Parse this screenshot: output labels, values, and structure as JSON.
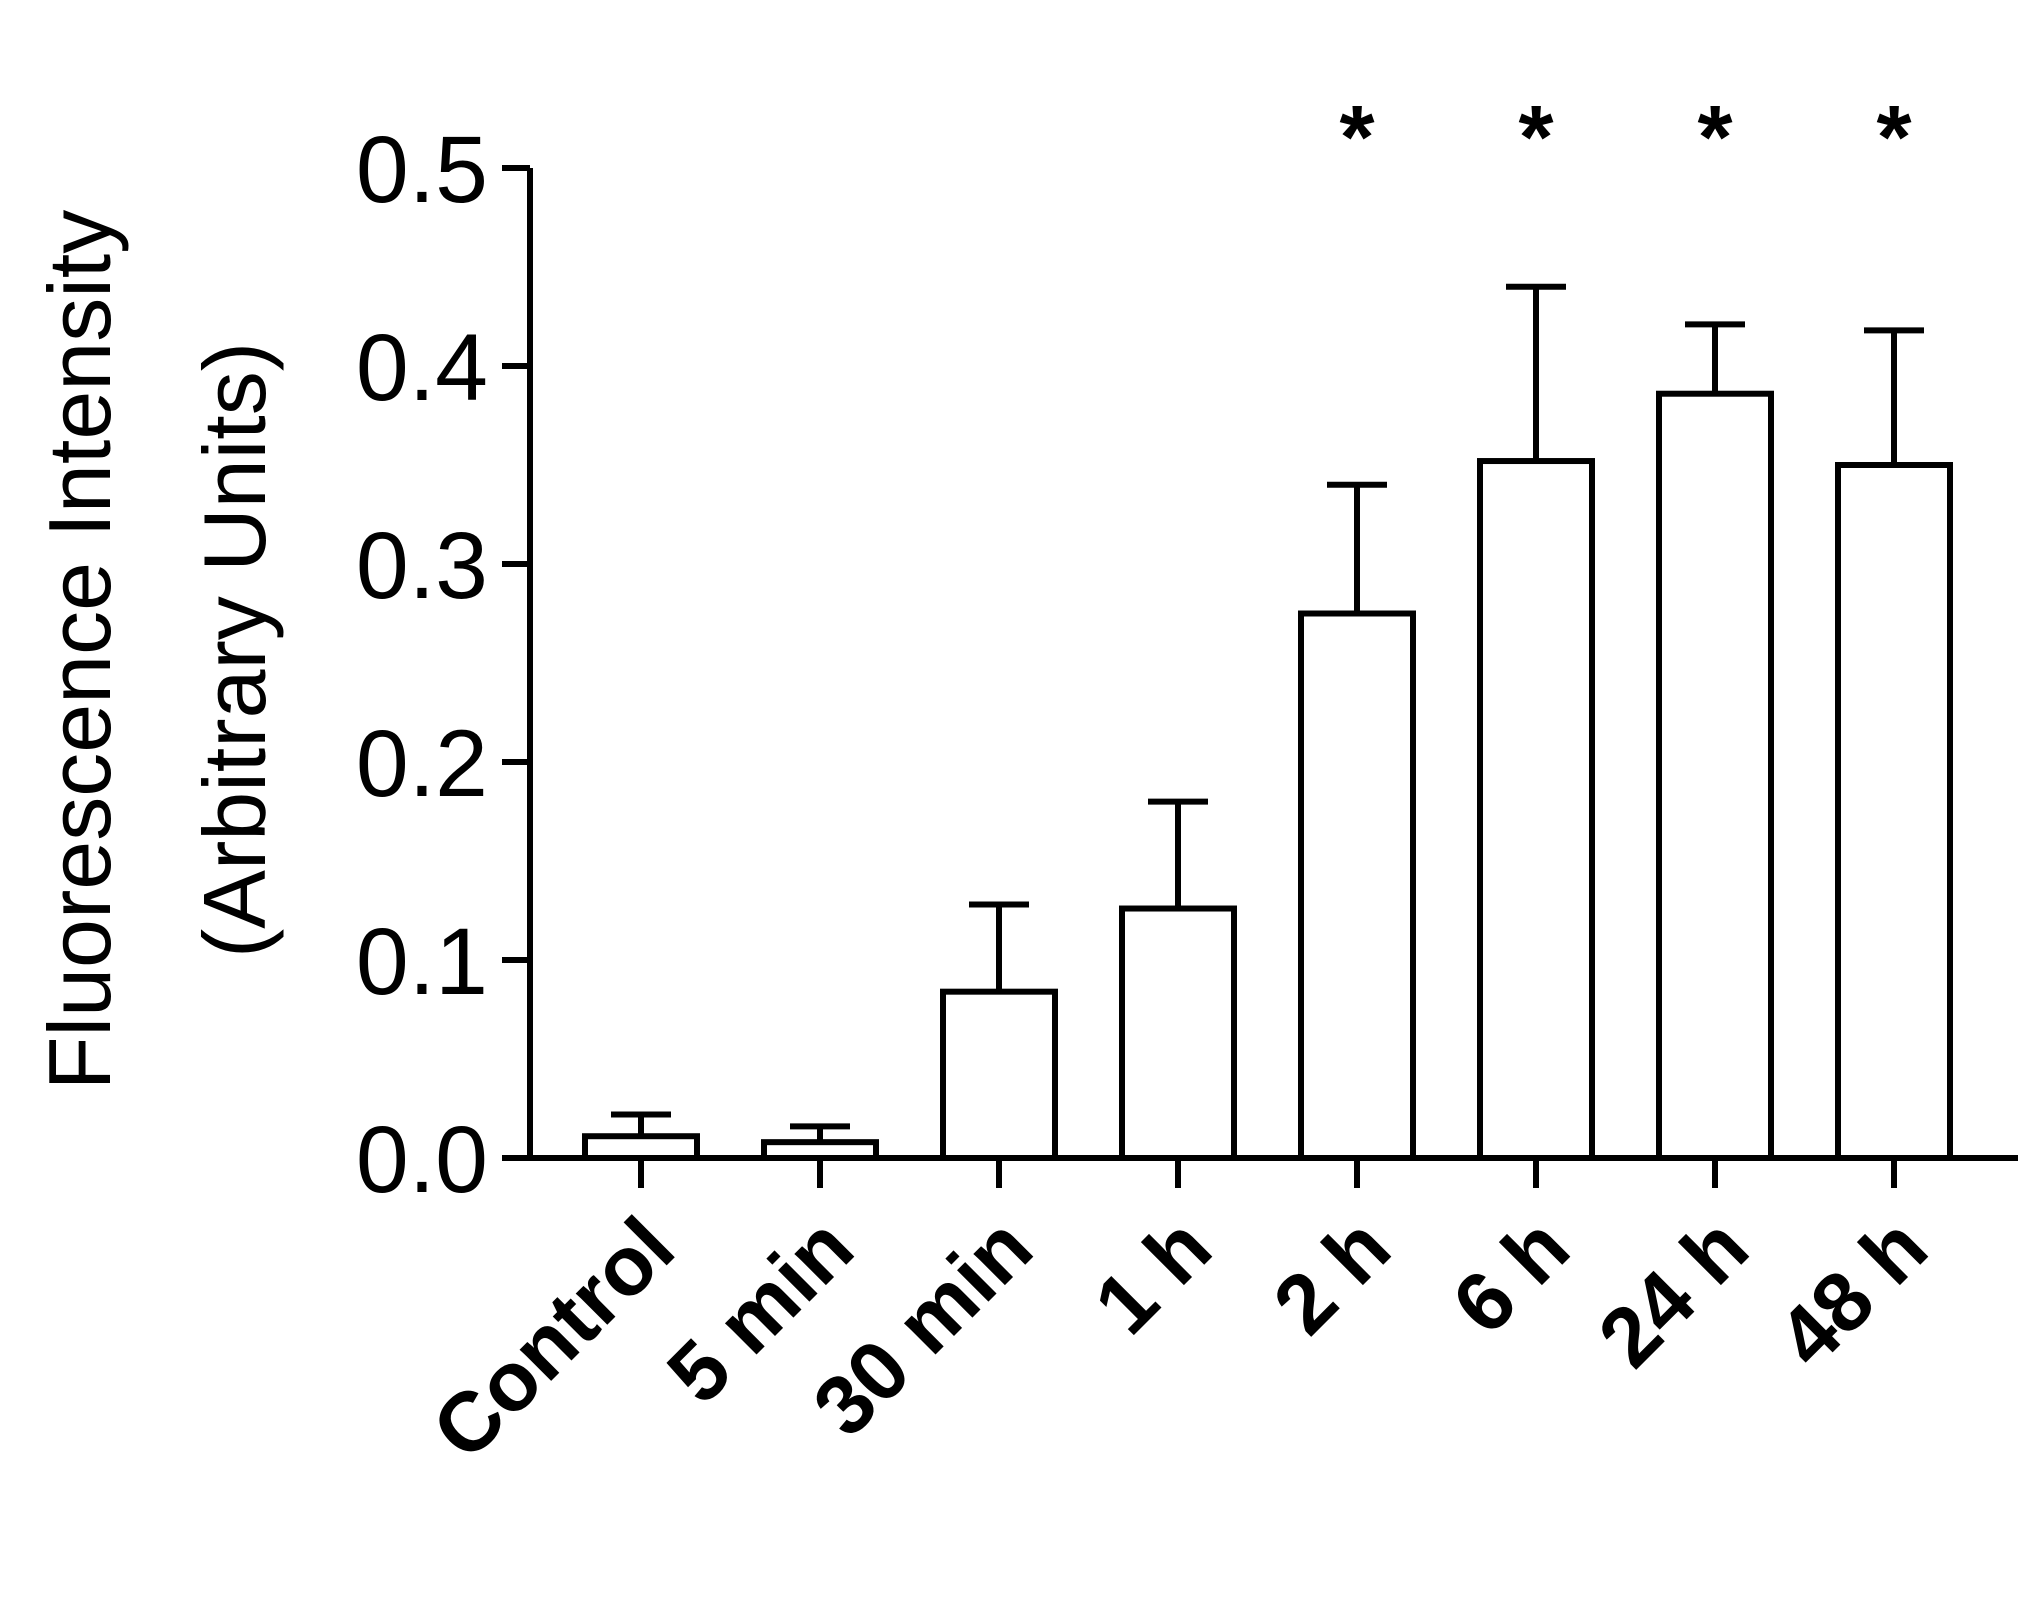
{
  "chart_data": {
    "type": "bar",
    "title": "",
    "xlabel": "",
    "ylabel_line1": "Fluorescence Intensity",
    "ylabel_line2": "(Arbitrary Units)",
    "ylim": [
      0,
      0.5
    ],
    "yticks": [
      "0.0",
      "0.1",
      "0.2",
      "0.3",
      "0.4",
      "0.5"
    ],
    "categories": [
      "Control",
      "5 min",
      "30 min",
      "1 h",
      "2 h",
      "6 h",
      "24 h",
      "48 h"
    ],
    "values": [
      0.011,
      0.008,
      0.084,
      0.126,
      0.275,
      0.352,
      0.386,
      0.35
    ],
    "errors": [
      0.011,
      0.008,
      0.044,
      0.054,
      0.065,
      0.088,
      0.035,
      0.068
    ],
    "significance": [
      "",
      "",
      "",
      "",
      "*",
      "*",
      "*",
      "*"
    ],
    "bar_fill": "#ffffff",
    "bar_stroke": "#000000",
    "grid": false,
    "legend": "none"
  }
}
